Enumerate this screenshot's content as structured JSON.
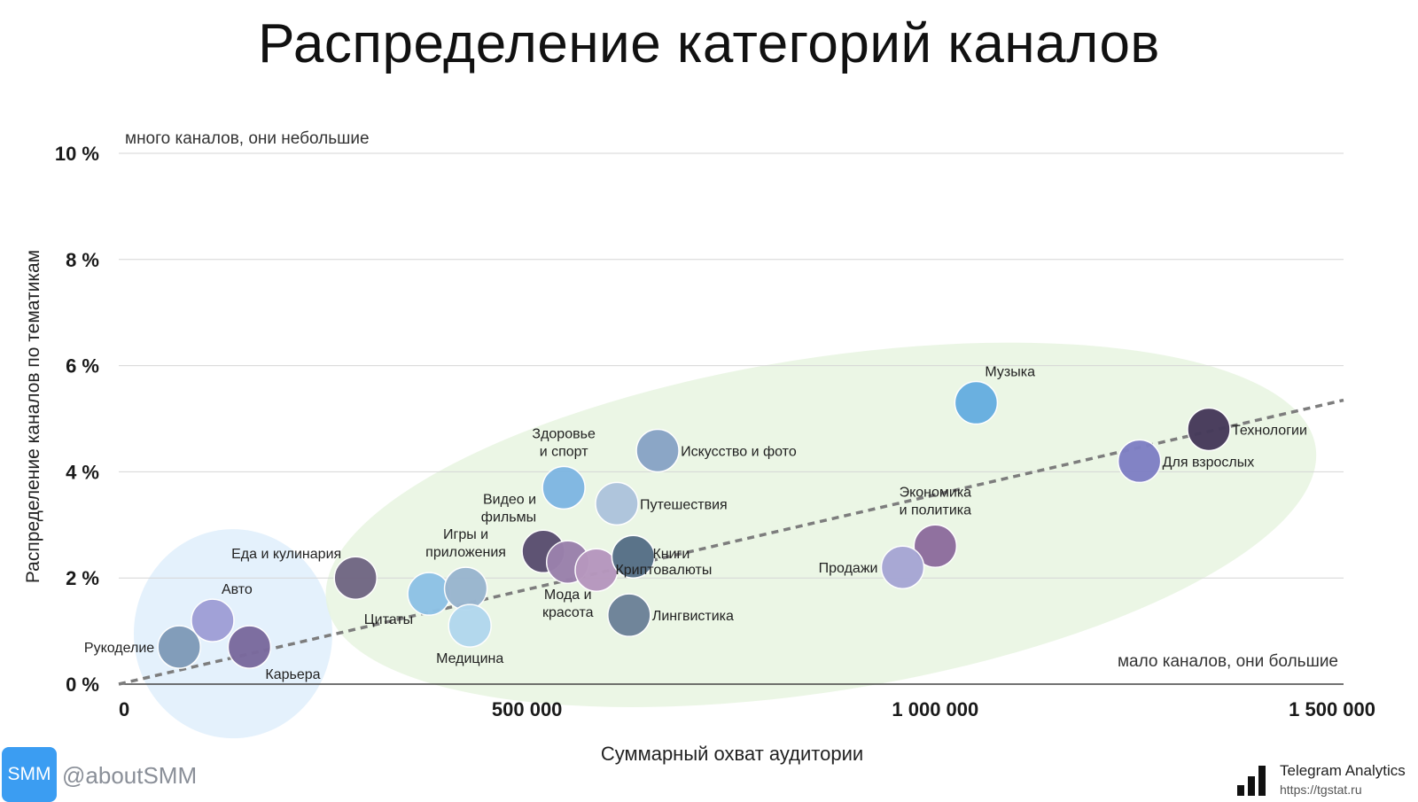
{
  "chart_data": {
    "type": "scatter",
    "title": "Распределение категорий каналов",
    "xlabel": "Суммарный охват аудитории",
    "ylabel": "Распределение каналов по тематикам",
    "xlim": [
      0,
      1500000
    ],
    "ylim": [
      0,
      10
    ],
    "x_ticks": [
      {
        "value": 0,
        "label": "0"
      },
      {
        "value": 500000,
        "label": "500 000"
      },
      {
        "value": 1000000,
        "label": "1 000 000"
      },
      {
        "value": 1500000,
        "label": "1 500 000"
      }
    ],
    "y_ticks": [
      {
        "value": 0,
        "label": "0 %"
      },
      {
        "value": 2,
        "label": "2 %"
      },
      {
        "value": 4,
        "label": "4 %"
      },
      {
        "value": 6,
        "label": "6 %"
      },
      {
        "value": 8,
        "label": "8 %"
      },
      {
        "value": 10,
        "label": "10 %"
      }
    ],
    "grid": true,
    "annotations": {
      "top_left": "много каналов, они небольшие",
      "bottom_right": "мало каналов, они большие"
    },
    "trendline": {
      "x": [
        0,
        1500000
      ],
      "y": [
        0,
        5.35
      ],
      "style": "dashed"
    },
    "points": [
      {
        "label": "Рукоделие",
        "x": 74000,
        "y": 0.7,
        "color": "#7f9bb8",
        "label_pos": "left"
      },
      {
        "label": "Авто",
        "x": 115000,
        "y": 1.2,
        "color": "#9f9fd6",
        "label_pos": "above-right"
      },
      {
        "label": "Карьера",
        "x": 160000,
        "y": 0.7,
        "color": "#7a6a9e",
        "label_pos": "below-right"
      },
      {
        "label": "Еда и кулинария",
        "x": 290000,
        "y": 2.0,
        "color": "#716783",
        "label_pos": "above-left"
      },
      {
        "label": "Цитаты",
        "x": 380000,
        "y": 1.7,
        "color": "#8ec2e6",
        "label_pos": "below-left"
      },
      {
        "label": "Игры и приложения",
        "x": 425000,
        "y": 1.8,
        "color": "#99b5cf",
        "label_pos": "above"
      },
      {
        "label": "Медицина",
        "x": 430000,
        "y": 1.1,
        "color": "#b2d8ee",
        "label_pos": "below"
      },
      {
        "label": "Видео и фильмы",
        "x": 520000,
        "y": 2.5,
        "color": "#5a4e70",
        "label_pos": "above-left"
      },
      {
        "label": "Мода и красота",
        "x": 550000,
        "y": 2.3,
        "color": "#9a81ac",
        "label_pos": "below"
      },
      {
        "label": "",
        "x": 585000,
        "y": 2.15,
        "color": "#b697be"
      },
      {
        "label": "Здоровье и спорт",
        "x": 545000,
        "y": 3.7,
        "color": "#7fb6e2",
        "label_pos": "above"
      },
      {
        "label": "Путешествия",
        "x": 610000,
        "y": 3.4,
        "color": "#aec4dc",
        "label_pos": "right"
      },
      {
        "label": "Искусство и фото",
        "x": 660000,
        "y": 4.4,
        "color": "#88a4c6",
        "label_pos": "right"
      },
      {
        "label": "Книги",
        "x": 630000,
        "y": 2.4,
        "color": "#5a7389",
        "label_pos": "right"
      },
      {
        "label": "Криптовалюты",
        "x": 630000,
        "y": 2.4,
        "color": "#5a7389",
        "label_pos": "below-right"
      },
      {
        "label": "Лингвистика",
        "x": 625000,
        "y": 1.3,
        "color": "#6d8298",
        "label_pos": "right"
      },
      {
        "label": "Экономика и политика",
        "x": 1000000,
        "y": 2.6,
        "color": "#8e6d9d",
        "label_pos": "above"
      },
      {
        "label": "Продажи",
        "x": 960000,
        "y": 2.2,
        "color": "#a6a6d4",
        "label_pos": "left"
      },
      {
        "label": "Музыка",
        "x": 1050000,
        "y": 5.3,
        "color": "#66aee0",
        "label_pos": "above-right"
      },
      {
        "label": "Технологии",
        "x": 1335000,
        "y": 4.8,
        "color": "#463a5a",
        "label_pos": "right"
      },
      {
        "label": "Для взрослых",
        "x": 1250000,
        "y": 4.2,
        "color": "#7f80c4",
        "label_pos": "right"
      }
    ],
    "clusters": [
      {
        "shape": "ellipse",
        "color": "#dfeefb",
        "cx": 140000,
        "cy": 0.95
      },
      {
        "shape": "ellipse",
        "color": "#e8f4e0",
        "cx": 860000,
        "cy": 3.0
      }
    ]
  },
  "footer": {
    "smm_badge": "SMM",
    "handle": "@aboutSMM",
    "source_name": "Telegram Analytics",
    "source_url": "https://tgstat.ru"
  }
}
